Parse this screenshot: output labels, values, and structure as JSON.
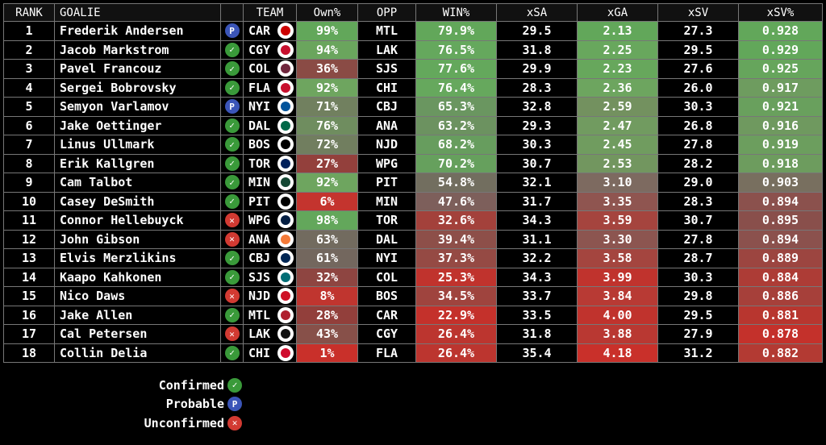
{
  "chart_data": {
    "type": "table",
    "headers": [
      "RANK",
      "GOALIE",
      "",
      "TEAM",
      "Own%",
      "OPP",
      "WIN%",
      "xSA",
      "xGA",
      "xSV",
      "xSV%"
    ],
    "rows": [
      {
        "rank": "1",
        "goalie": "Frederik Andersen",
        "status": "P",
        "team": "CAR",
        "own": "99%",
        "opp": "MTL",
        "win": "79.9%",
        "xsa": "29.5",
        "xga": "2.13",
        "xsv": "27.3",
        "xsvp": "0.928",
        "own_c": "#62a75a",
        "win_c": "#62a75a",
        "xga_c": "#62a75a",
        "xsvp_c": "#62a75a",
        "logo_c": "#cc0000"
      },
      {
        "rank": "2",
        "goalie": "Jacob Markstrom",
        "status": "C",
        "team": "CGY",
        "own": "94%",
        "opp": "LAK",
        "win": "76.5%",
        "xsa": "31.8",
        "xga": "2.25",
        "xsv": "29.5",
        "xsvp": "0.929",
        "own_c": "#6aa55d",
        "win_c": "#65a85d",
        "xga_c": "#68a75d",
        "xsvp_c": "#62a75a",
        "logo_c": "#c8102e"
      },
      {
        "rank": "3",
        "goalie": "Pavel Francouz",
        "status": "C",
        "team": "COL",
        "own": "36%",
        "opp": "SJS",
        "win": "77.6%",
        "xsa": "29.9",
        "xga": "2.23",
        "xsv": "27.6",
        "xsvp": "0.925",
        "own_c": "#8a4b45",
        "win_c": "#64a85c",
        "xga_c": "#67a75c",
        "xsvp_c": "#66a55c",
        "logo_c": "#6f263d"
      },
      {
        "rank": "4",
        "goalie": "Sergei Bobrovsky",
        "status": "C",
        "team": "FLA",
        "own": "92%",
        "opp": "CHI",
        "win": "76.4%",
        "xsa": "28.3",
        "xga": "2.36",
        "xsv": "26.0",
        "xsvp": "0.917",
        "own_c": "#6ea55f",
        "win_c": "#66a85d",
        "xga_c": "#6da55f",
        "xsvp_c": "#6e9c5f",
        "logo_c": "#c8102e"
      },
      {
        "rank": "5",
        "goalie": "Semyon Varlamov",
        "status": "P",
        "team": "NYI",
        "own": "71%",
        "opp": "CBJ",
        "win": "65.3%",
        "xsa": "32.8",
        "xga": "2.59",
        "xsv": "30.3",
        "xsvp": "0.921",
        "own_c": "#71805f",
        "win_c": "#6a9660",
        "xga_c": "#73915f",
        "xsvp_c": "#69a05d",
        "logo_c": "#00539b"
      },
      {
        "rank": "6",
        "goalie": "Jake Oettinger",
        "status": "C",
        "team": "DAL",
        "own": "76%",
        "opp": "ANA",
        "win": "63.2%",
        "xsa": "29.3",
        "xga": "2.47",
        "xsv": "26.8",
        "xsvp": "0.916",
        "own_c": "#6f8d5f",
        "win_c": "#6c9260",
        "xga_c": "#719b60",
        "xsvp_c": "#6f995f",
        "logo_c": "#006847"
      },
      {
        "rank": "7",
        "goalie": "Linus Ullmark",
        "status": "C",
        "team": "BOS",
        "own": "72%",
        "opp": "NJD",
        "win": "68.2%",
        "xsa": "30.3",
        "xga": "2.45",
        "xsv": "27.8",
        "xsvp": "0.919",
        "own_c": "#717e5f",
        "win_c": "#679d5e",
        "xga_c": "#709c5f",
        "xsvp_c": "#6c9e5e",
        "logo_c": "#000000"
      },
      {
        "rank": "8",
        "goalie": "Erik Kallgren",
        "status": "C",
        "team": "TOR",
        "own": "27%",
        "opp": "WPG",
        "win": "70.2%",
        "xsa": "30.7",
        "xga": "2.53",
        "xsv": "28.2",
        "xsvp": "0.918",
        "own_c": "#93403c",
        "win_c": "#66a05d",
        "xga_c": "#72965f",
        "xsvp_c": "#6d9c5e",
        "logo_c": "#00205b"
      },
      {
        "rank": "9",
        "goalie": "Cam Talbot",
        "status": "C",
        "team": "MIN",
        "own": "92%",
        "opp": "PIT",
        "win": "54.8%",
        "xsa": "32.1",
        "xga": "3.10",
        "xsv": "29.0",
        "xsvp": "0.903",
        "own_c": "#6ea55f",
        "win_c": "#726e5f",
        "xga_c": "#7d6a60",
        "xsvp_c": "#786f5f",
        "logo_c": "#154734"
      },
      {
        "rank": "10",
        "goalie": "Casey DeSmith",
        "status": "C",
        "team": "PIT",
        "own": "6%",
        "opp": "MIN",
        "win": "47.6%",
        "xsa": "31.7",
        "xga": "3.35",
        "xsv": "28.3",
        "xsvp": "0.894",
        "own_c": "#c4342e",
        "win_c": "#7d5f5b",
        "xga_c": "#8f5550",
        "xsvp_c": "#8b514d",
        "logo_c": "#000000"
      },
      {
        "rank": "11",
        "goalie": "Connor Hellebuyck",
        "status": "U",
        "team": "WPG",
        "own": "98%",
        "opp": "TOR",
        "win": "32.6%",
        "xsa": "34.3",
        "xga": "3.59",
        "xsv": "30.7",
        "xsvp": "0.895",
        "own_c": "#63a75b",
        "win_c": "#a3413b",
        "xga_c": "#a5443e",
        "xsvp_c": "#894f4b",
        "logo_c": "#041e42"
      },
      {
        "rank": "12",
        "goalie": "John Gibson",
        "status": "U",
        "team": "ANA",
        "own": "63%",
        "opp": "DAL",
        "win": "39.4%",
        "xsa": "31.1",
        "xga": "3.30",
        "xsv": "27.8",
        "xsvp": "0.894",
        "own_c": "#726b5f",
        "win_c": "#8d4f49",
        "xga_c": "#8c5550",
        "xsvp_c": "#8b514d",
        "logo_c": "#f47a38"
      },
      {
        "rank": "13",
        "goalie": "Elvis Merzlikins",
        "status": "C",
        "team": "CBJ",
        "own": "61%",
        "opp": "NYI",
        "win": "37.3%",
        "xsa": "32.2",
        "xga": "3.58",
        "xsv": "28.7",
        "xsvp": "0.889",
        "own_c": "#73675e",
        "win_c": "#954a44",
        "xga_c": "#a4453f",
        "xsvp_c": "#9c4540",
        "logo_c": "#002654"
      },
      {
        "rank": "14",
        "goalie": "Kaapo Kahkonen",
        "status": "C",
        "team": "SJS",
        "own": "32%",
        "opp": "COL",
        "win": "25.3%",
        "xsa": "34.3",
        "xga": "3.99",
        "xsv": "30.3",
        "xsvp": "0.884",
        "own_c": "#8e4541",
        "win_c": "#c0332d",
        "xga_c": "#c0332d",
        "xsvp_c": "#ad3c36",
        "logo_c": "#006d75"
      },
      {
        "rank": "15",
        "goalie": "Nico Daws",
        "status": "U",
        "team": "NJD",
        "own": "8%",
        "opp": "BOS",
        "win": "34.5%",
        "xsa": "33.7",
        "xga": "3.84",
        "xsv": "29.8",
        "xsvp": "0.886",
        "own_c": "#c0352f",
        "win_c": "#9f443e",
        "xga_c": "#b83a34",
        "xsvp_c": "#a6403a",
        "logo_c": "#ce1126"
      },
      {
        "rank": "16",
        "goalie": "Jake Allen",
        "status": "C",
        "team": "MTL",
        "own": "28%",
        "opp": "CAR",
        "win": "22.9%",
        "xsa": "33.5",
        "xga": "4.00",
        "xsv": "29.5",
        "xsvp": "0.881",
        "own_c": "#923f3b",
        "win_c": "#c4312b",
        "xga_c": "#c0332d",
        "xsvp_c": "#b8362f",
        "logo_c": "#af1e2d"
      },
      {
        "rank": "17",
        "goalie": "Cal Petersen",
        "status": "U",
        "team": "LAK",
        "own": "43%",
        "opp": "CGY",
        "win": "26.4%",
        "xsa": "31.8",
        "xga": "3.88",
        "xsv": "27.9",
        "xsvp": "0.878",
        "own_c": "#875049",
        "win_c": "#bc352f",
        "xga_c": "#b93832",
        "xsvp_c": "#c4312b",
        "logo_c": "#111111"
      },
      {
        "rank": "18",
        "goalie": "Collin Delia",
        "status": "C",
        "team": "CHI",
        "own": "1%",
        "opp": "FLA",
        "win": "26.4%",
        "xsa": "35.4",
        "xga": "4.18",
        "xsv": "31.2",
        "xsvp": "0.882",
        "own_c": "#c9302a",
        "win_c": "#bc352f",
        "xga_c": "#c9302a",
        "xsvp_c": "#b33a33",
        "logo_c": "#cf0a2c"
      }
    ]
  },
  "status_colors": {
    "C": "#3a9a3a",
    "P": "#3b55b8",
    "U": "#d23a32"
  },
  "status_glyphs": {
    "C": "✓",
    "P": "P",
    "U": "✕"
  },
  "legend": [
    {
      "label": "Confirmed",
      "status": "C"
    },
    {
      "label": "Probable",
      "status": "P"
    },
    {
      "label": "Unconfirmed",
      "status": "U"
    }
  ]
}
